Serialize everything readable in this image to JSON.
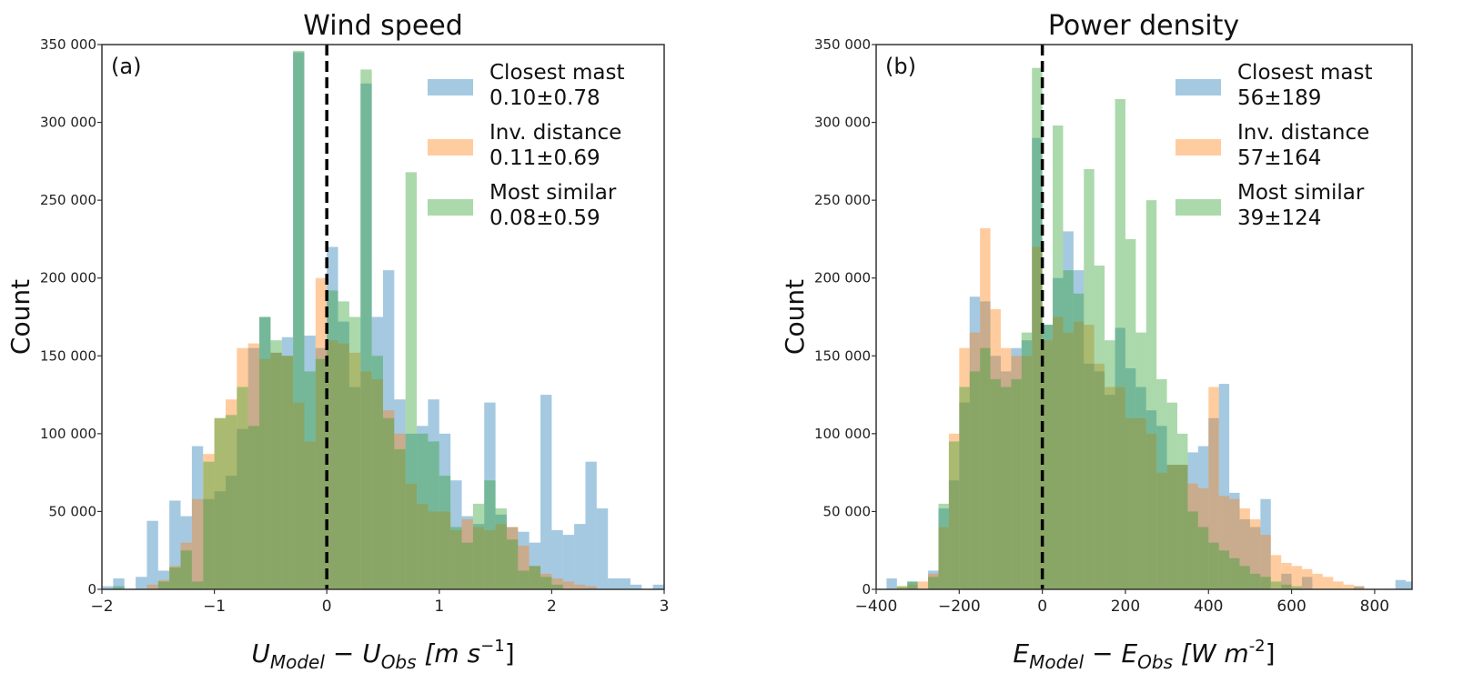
{
  "chart_data": [
    {
      "type": "bar",
      "panel_label": "(a)",
      "title": "Wind speed",
      "xlabel": "U_Model − U_Obs [m s^-1]",
      "xlabel_parts": {
        "a": "U",
        "a_sub": "Model",
        "b": "U",
        "b_sub": "Obs",
        "unit": "[m s",
        "unit_sup": "−1",
        "unit_end": "]"
      },
      "ylabel": "Count",
      "xlim": [
        -2,
        3
      ],
      "ylim": [
        0,
        350000
      ],
      "xticks": [
        -2,
        -1,
        0,
        1,
        2,
        3
      ],
      "xtick_labels": [
        "−2",
        "−1",
        "0",
        "1",
        "2",
        "3"
      ],
      "yticks": [
        0,
        50000,
        100000,
        150000,
        200000,
        250000,
        300000,
        350000
      ],
      "ytick_labels": [
        "0",
        "50 000",
        "100 000",
        "150 000",
        "200 000",
        "250 000",
        "300 000",
        "350 000"
      ],
      "vline_x": 0,
      "legend_position": "top-right",
      "bin_width": 0.1,
      "series": [
        {
          "name": "Closest mast",
          "stat": "0.10±0.78",
          "color": "#1f77b4",
          "start": -2.0,
          "values": [
            2000,
            7000,
            0,
            8000,
            44000,
            12000,
            57000,
            47000,
            92000,
            58000,
            63000,
            73000,
            103000,
            155000,
            175000,
            152000,
            162000,
            345000,
            163000,
            155000,
            220000,
            172000,
            130000,
            325000,
            175000,
            205000,
            122000,
            100000,
            105000,
            122000,
            100000,
            70000,
            47000,
            42000,
            120000,
            48000,
            40000,
            37000,
            30000,
            125000,
            38000,
            35000,
            42000,
            82000,
            52000,
            7000,
            7000,
            3000,
            0,
            3000
          ]
        },
        {
          "name": "Inv. distance",
          "stat": "0.11±0.69",
          "color": "#ff7f0e",
          "start": -2.0,
          "values": [
            0,
            0,
            0,
            0,
            3000,
            6000,
            15000,
            30000,
            58000,
            87000,
            110000,
            122000,
            155000,
            158000,
            148000,
            152000,
            150000,
            120000,
            95000,
            200000,
            160000,
            158000,
            152000,
            140000,
            135000,
            115000,
            100000,
            68000,
            55000,
            50000,
            50000,
            38000,
            45000,
            40000,
            38000,
            42000,
            40000,
            28000,
            15000,
            10000,
            7000,
            5000,
            3000,
            2000,
            0,
            0,
            0,
            0,
            0,
            0
          ]
        },
        {
          "name": "Most similar",
          "stat": "0.08±0.59",
          "color": "#2ca02c",
          "start": -2.0,
          "values": [
            0,
            2000,
            0,
            0,
            0,
            5000,
            14000,
            25000,
            5000,
            82000,
            110000,
            112000,
            130000,
            105000,
            175000,
            160000,
            150000,
            346000,
            140000,
            148000,
            192000,
            185000,
            175000,
            334000,
            150000,
            110000,
            90000,
            268000,
            100000,
            95000,
            73000,
            40000,
            30000,
            55000,
            70000,
            52000,
            32000,
            12000,
            15000,
            8000,
            3000,
            0,
            0,
            0,
            0,
            0,
            0,
            0,
            0,
            0
          ]
        }
      ]
    },
    {
      "type": "bar",
      "panel_label": "(b)",
      "title": "Power density",
      "xlabel": "E_Model − E_Obs [W m^-2]",
      "xlabel_parts": {
        "a": "E",
        "a_sub": "Model",
        "b": "E",
        "b_sub": "Obs",
        "unit": "[W m",
        "unit_sup": "-2",
        "unit_end": "]"
      },
      "ylabel": "Count",
      "xlim": [
        -400,
        890
      ],
      "ylim": [
        0,
        350000
      ],
      "xticks": [
        -400,
        -200,
        0,
        200,
        400,
        600,
        800
      ],
      "xtick_labels": [
        "−400",
        "−200",
        "0",
        "200",
        "400",
        "600",
        "800"
      ],
      "yticks": [
        0,
        50000,
        100000,
        150000,
        200000,
        250000,
        300000,
        350000
      ],
      "ytick_labels": [
        "0",
        "50 000",
        "100 000",
        "150 000",
        "200 000",
        "250 000",
        "300 000",
        "350 000"
      ],
      "vline_x": 0,
      "legend_position": "top-right",
      "bin_width": 25,
      "series": [
        {
          "name": "Closest mast",
          "stat": "56±189",
          "color": "#1f77b4",
          "start": -375,
          "values": [
            7000,
            0,
            5000,
            0,
            12000,
            52000,
            70000,
            120000,
            188000,
            185000,
            150000,
            140000,
            155000,
            160000,
            290000,
            170000,
            200000,
            230000,
            205000,
            145000,
            140000,
            125000,
            168000,
            142000,
            130000,
            115000,
            105000,
            80000,
            80000,
            88000,
            92000,
            110000,
            132000,
            62000,
            45000,
            40000,
            58000,
            0,
            10000,
            0,
            8000,
            0,
            0,
            0,
            0,
            2000,
            0,
            0,
            0,
            6000,
            5000
          ]
        },
        {
          "name": "Inv. distance",
          "stat": "57±164",
          "color": "#ff7f0e",
          "start": -375,
          "values": [
            0,
            2000,
            3000,
            5000,
            10000,
            40000,
            100000,
            155000,
            165000,
            232000,
            180000,
            155000,
            150000,
            150000,
            220000,
            160000,
            175000,
            165000,
            172000,
            170000,
            145000,
            130000,
            130000,
            110000,
            110000,
            100000,
            75000,
            80000,
            80000,
            68000,
            65000,
            130000,
            60000,
            58000,
            52000,
            45000,
            35000,
            22000,
            17000,
            15000,
            13000,
            10000,
            8000,
            5000,
            3000,
            2000,
            0,
            0,
            0,
            0,
            0
          ]
        },
        {
          "name": "Most similar",
          "stat": "39±124",
          "color": "#2ca02c",
          "start": -375,
          "values": [
            0,
            2000,
            5000,
            0,
            8000,
            55000,
            95000,
            130000,
            140000,
            155000,
            135000,
            130000,
            135000,
            165000,
            335000,
            170000,
            298000,
            205000,
            190000,
            270000,
            208000,
            160000,
            315000,
            225000,
            165000,
            250000,
            135000,
            120000,
            100000,
            50000,
            40000,
            30000,
            25000,
            20000,
            15000,
            10000,
            8000,
            5000,
            3000,
            2000,
            0,
            0,
            0,
            0,
            0,
            0,
            0,
            0,
            0,
            0,
            0
          ]
        }
      ]
    }
  ]
}
